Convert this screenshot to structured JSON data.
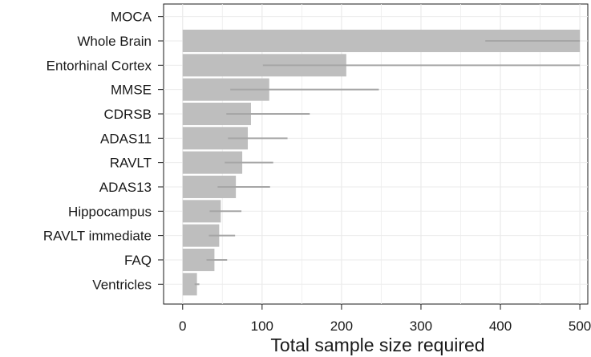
{
  "chart_data": {
    "type": "bar",
    "orientation": "horizontal",
    "title": "",
    "xlabel": "Total sample size required",
    "ylabel": "",
    "xlim": [
      -24,
      510
    ],
    "xticks": [
      0,
      100,
      200,
      300,
      400,
      500
    ],
    "grid": true,
    "legend": "none",
    "bar_color": "#bebebe",
    "error_color": "#a6a6a6",
    "categories": [
      "MOCA",
      "Whole Brain",
      "Entorhinal Cortex",
      "MMSE",
      "CDRSB",
      "ADAS11",
      "RAVLT",
      "ADAS13",
      "Hippocampus",
      "RAVLT immediate",
      "FAQ",
      "Ventricles"
    ],
    "values": [
      null,
      500,
      206,
      109,
      86,
      82,
      75,
      67,
      48,
      46,
      40,
      18
    ],
    "error_low": [
      null,
      381,
      101,
      60,
      55,
      57,
      53,
      44,
      34,
      33,
      30,
      15
    ],
    "error_high": [
      null,
      500,
      500,
      247,
      160,
      132,
      114,
      110,
      74,
      66,
      56,
      21
    ]
  }
}
